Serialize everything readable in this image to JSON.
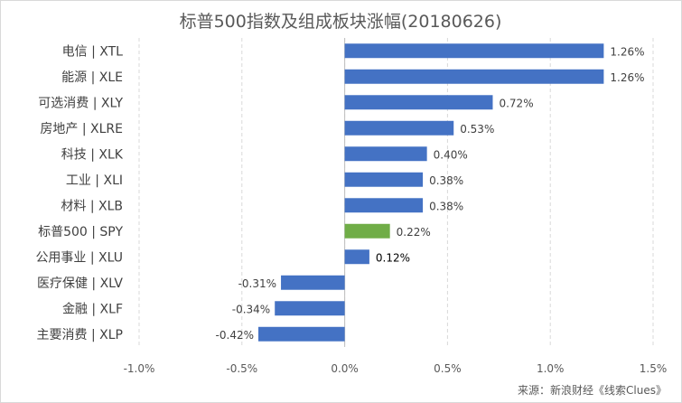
{
  "chart_data": {
    "type": "bar",
    "orientation": "horizontal",
    "title": "标普500指数及组成板块涨幅(20180626)",
    "categories": [
      "电信 | XTL",
      "能源 | XLE",
      "可选消费 | XLY",
      "房地产 | XLRE",
      "科技 | XLK",
      "工业 | XLI",
      "材料 | XLB",
      "标普500 | SPY",
      "公用事业 | XLU",
      "医疗保健 | XLV",
      "金融 | XLF",
      "主要消费 | XLP"
    ],
    "values": [
      1.26,
      1.26,
      0.72,
      0.53,
      0.4,
      0.38,
      0.38,
      0.22,
      0.12,
      -0.31,
      -0.34,
      -0.42
    ],
    "data_labels": [
      "1.26%",
      "1.26%",
      "0.72%",
      "0.53%",
      "0.40%",
      "0.38%",
      "0.38%",
      "0.22%",
      "0.12%",
      "-0.31%",
      "-0.34%",
      "-0.42%"
    ],
    "bar_colors": [
      "#4472c4",
      "#4472c4",
      "#4472c4",
      "#4472c4",
      "#4472c4",
      "#4472c4",
      "#4472c4",
      "#70ad47",
      "#4472c4",
      "#4472c4",
      "#4472c4",
      "#4472c4"
    ],
    "xlim": [
      -1.0,
      1.5
    ],
    "xticks": [
      -1.0,
      -0.5,
      0.0,
      0.5,
      1.0,
      1.5
    ],
    "xtick_labels": [
      "-1.0%",
      "-0.5%",
      "0.0%",
      "0.5%",
      "1.0%",
      "1.5%"
    ],
    "grid": "vertical dashed",
    "legend": "none",
    "source": "来源：新浪财经《线索Clues》"
  }
}
